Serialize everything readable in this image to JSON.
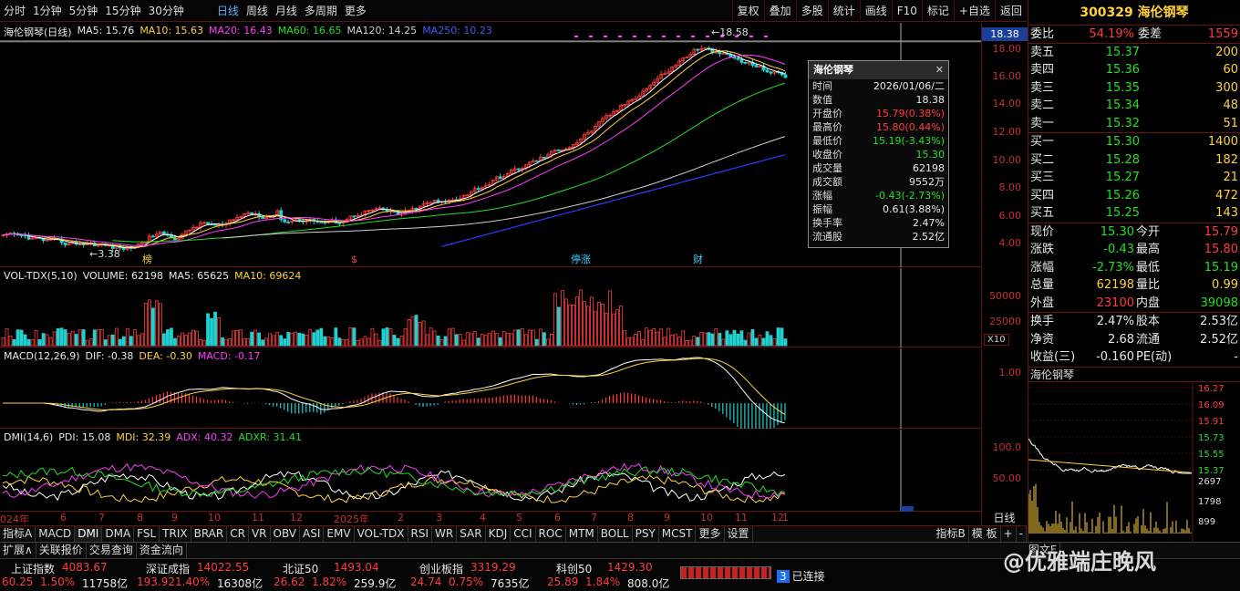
{
  "toolbar": {
    "periods": [
      "分时",
      "1分钟",
      "5分钟",
      "15分钟",
      "30分钟"
    ],
    "views": [
      "日线",
      "周线",
      "月线",
      "多周期",
      "更多"
    ],
    "active_view": "日线",
    "right_buttons": [
      "复权",
      "叠加",
      "多股",
      "统计",
      "画线",
      "F10",
      "标记",
      "+自选",
      "返回"
    ]
  },
  "kline": {
    "legend": {
      "name": "海伦钢琴(日线)",
      "ma5": "MA5: 15.76",
      "ma10": "MA10: 15.63",
      "ma20": "MA20: 16.43",
      "ma60": "MA60: 16.65",
      "ma120": "MA120: 14.25",
      "ma250": "MA250: 10.23"
    },
    "price_ticks": [
      "18.00",
      "16.00",
      "14.00",
      "12.00",
      "10.00",
      "8.00",
      "6.00",
      "4.00"
    ],
    "current_price_tag": "18.38",
    "high_mark": "18.58",
    "low_mark": "3.38",
    "event_markers": [
      "榜",
      "$",
      "停涨",
      "财"
    ],
    "colors": {
      "ma5": "#ffffff",
      "ma10": "#ffd23a",
      "ma20": "#ff3cff",
      "ma60": "#22e022",
      "ma120": "#d0d0d0",
      "ma250": "#2a3cff"
    }
  },
  "tooltip": {
    "title": "海伦钢琴",
    "rows": [
      {
        "k": "时间",
        "v": "2026/01/06/二",
        "c": "white"
      },
      {
        "k": "数值",
        "v": "18.38",
        "c": "white"
      },
      {
        "k": "开盘价",
        "v": "15.79(0.38%)",
        "c": "red"
      },
      {
        "k": "最高价",
        "v": "15.80(0.44%)",
        "c": "red"
      },
      {
        "k": "最低价",
        "v": "15.19(-3.43%)",
        "c": "green"
      },
      {
        "k": "收盘价",
        "v": "15.30",
        "c": "green"
      },
      {
        "k": "成交量",
        "v": "62198",
        "c": "white"
      },
      {
        "k": "成交额",
        "v": "9552万",
        "c": "white"
      },
      {
        "k": "涨幅",
        "v": "-0.43(-2.73%)",
        "c": "green"
      },
      {
        "k": "振幅",
        "v": "0.61(3.88%)",
        "c": "white"
      },
      {
        "k": "换手率",
        "v": "2.47%",
        "c": "white"
      },
      {
        "k": "流通股",
        "v": "2.52亿",
        "c": "white"
      }
    ]
  },
  "volume": {
    "legend": "VOL-TDX(5,10)",
    "volume": "VOLUME: 62198",
    "ma5": "MA5: 65625",
    "ma10": "MA10: 69624",
    "ticks": [
      "50000",
      "25000"
    ],
    "unit": "X10"
  },
  "macd": {
    "legend": "MACD(12,26,9)",
    "dif": "DIF: -0.38",
    "dea": "DEA: -0.30",
    "macd": "MACD: -0.17",
    "ticks": [
      "1.00"
    ]
  },
  "dmi": {
    "legend": "DMI(14,6)",
    "pdi": "PDI: 15.08",
    "mdi": "MDI: 32.39",
    "adx": "ADX: 40.32",
    "adxr": "ADXR: 31.41",
    "ticks": [
      "100.0",
      "50.00"
    ]
  },
  "axis": {
    "labels": [
      "024年",
      "6",
      "7",
      "8",
      "9",
      "10",
      "11",
      "12",
      "2025年",
      "2",
      "3",
      "4",
      "5",
      "6",
      "7",
      "8",
      "9",
      "10",
      "11",
      "12",
      "1"
    ],
    "period_label": "日线"
  },
  "quote": {
    "code": "300329",
    "name": "海伦钢琴",
    "weibi": {
      "k1": "委比",
      "v1": "54.19%",
      "k2": "委差",
      "v2": "1559"
    },
    "sells": [
      {
        "k": "卖五",
        "p": "15.37",
        "q": "200"
      },
      {
        "k": "卖四",
        "p": "15.36",
        "q": "60"
      },
      {
        "k": "卖三",
        "p": "15.35",
        "q": "300"
      },
      {
        "k": "卖二",
        "p": "15.34",
        "q": "48"
      },
      {
        "k": "卖一",
        "p": "15.32",
        "q": "51"
      }
    ],
    "buys": [
      {
        "k": "买一",
        "p": "15.30",
        "q": "1400"
      },
      {
        "k": "买二",
        "p": "15.28",
        "q": "182"
      },
      {
        "k": "买三",
        "p": "15.27",
        "q": "21"
      },
      {
        "k": "买四",
        "p": "15.26",
        "q": "472"
      },
      {
        "k": "买五",
        "p": "15.25",
        "q": "143"
      }
    ],
    "stats": [
      {
        "k1": "现价",
        "v1": "15.30",
        "c1": "green",
        "k2": "今开",
        "v2": "15.79",
        "c2": "red"
      },
      {
        "k1": "涨跌",
        "v1": "-0.43",
        "c1": "green",
        "k2": "最高",
        "v2": "15.80",
        "c2": "red"
      },
      {
        "k1": "涨幅",
        "v1": "-2.73%",
        "c1": "green",
        "k2": "最低",
        "v2": "15.19",
        "c2": "green"
      },
      {
        "k1": "总量",
        "v1": "62198",
        "c1": "yellow",
        "k2": "量比",
        "v2": "0.99",
        "c2": "yellow"
      },
      {
        "k1": "外盘",
        "v1": "23100",
        "c1": "red",
        "k2": "内盘",
        "v2": "39098",
        "c2": "green"
      }
    ],
    "stats2": [
      {
        "k1": "换手",
        "v1": "2.47%",
        "k2": "股本",
        "v2": "2.53亿"
      },
      {
        "k1": "净资",
        "v1": "2.68",
        "k2": "流通",
        "v2": "2.52亿"
      },
      {
        "k1": "收益(三)",
        "v1": "-0.160",
        "k2": "PE(动)",
        "v2": "-"
      }
    ]
  },
  "mini": {
    "title": "海伦钢琴",
    "price_ticks": [
      "16.27",
      "16.09",
      "15.91",
      "15.73",
      "15.55",
      "15.37"
    ],
    "vol_ticks": [
      "2697",
      "1798",
      "899"
    ]
  },
  "indicator_tabs": [
    "指标A",
    "MACD",
    "DMI",
    "DMA",
    "FSL",
    "TRIX",
    "BRAR",
    "CR",
    "VR",
    "OBV",
    "ASI",
    "EMV",
    "VOL-TDX",
    "RSI",
    "WR",
    "SAR",
    "KDJ",
    "CCI",
    "ROC",
    "MTM",
    "BOLL",
    "PSY",
    "MCST",
    "更多",
    "设置"
  ],
  "indicator_right": [
    "指标B",
    "模 板",
    "+",
    "-"
  ],
  "bottom_tabs": [
    "扩展∧",
    "关联报价",
    "交易查询",
    "资金流向"
  ],
  "bottom_right": [
    "图文F"
  ],
  "indices": [
    {
      "name": "上证指数",
      "value": "4083.67",
      "chg": "60.25",
      "pct": "1.50%",
      "amt": "11758亿"
    },
    {
      "name": "深证成指",
      "value": "14022.55",
      "chg": "193.92",
      "pct": "1.40%",
      "amt": "16308亿"
    },
    {
      "name": "北证50",
      "value": "1493.04",
      "chg": "26.62",
      "pct": "1.82%",
      "amt": "259.9亿"
    },
    {
      "name": "创业板指",
      "value": "3319.29",
      "chg": "24.74",
      "pct": "0.75%",
      "amt": "7635亿"
    },
    {
      "name": "科创50",
      "value": "1429.30",
      "chg": "25.89",
      "pct": "1.84%",
      "amt": "808.0亿"
    }
  ],
  "connection": {
    "count": "3",
    "label": "已连接"
  },
  "watermark": "@优雅端庄晚风"
}
